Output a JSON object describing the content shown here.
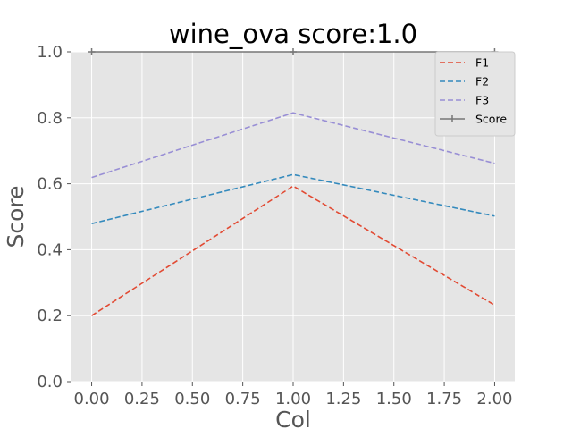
{
  "chart_data": {
    "type": "line",
    "title": "wine_ova score:1.0",
    "xlabel": "Col",
    "ylabel": "Score",
    "xlim": [
      -0.1,
      2.1
    ],
    "ylim": [
      0.0,
      1.0
    ],
    "x_ticks": [
      "0.00",
      "0.25",
      "0.50",
      "0.75",
      "1.00",
      "1.25",
      "1.50",
      "1.75",
      "2.00"
    ],
    "y_ticks": [
      "0.0",
      "0.2",
      "0.4",
      "0.6",
      "0.8",
      "1.0"
    ],
    "grid": true,
    "legend_position": "top-right",
    "x": [
      0,
      1,
      2
    ],
    "series": [
      {
        "name": "F1",
        "values": [
          0.2,
          0.593,
          0.232
        ],
        "color": "#E24A33",
        "style": "dashed"
      },
      {
        "name": "F2",
        "values": [
          0.479,
          0.628,
          0.502
        ],
        "color": "#348ABD",
        "style": "dashed"
      },
      {
        "name": "F3",
        "values": [
          0.619,
          0.815,
          0.662
        ],
        "color": "#988ED5",
        "style": "dashed"
      },
      {
        "name": "Score",
        "values": [
          1.0,
          1.0,
          1.0
        ],
        "color": "#777777",
        "style": "solid",
        "marker": "+"
      }
    ]
  }
}
